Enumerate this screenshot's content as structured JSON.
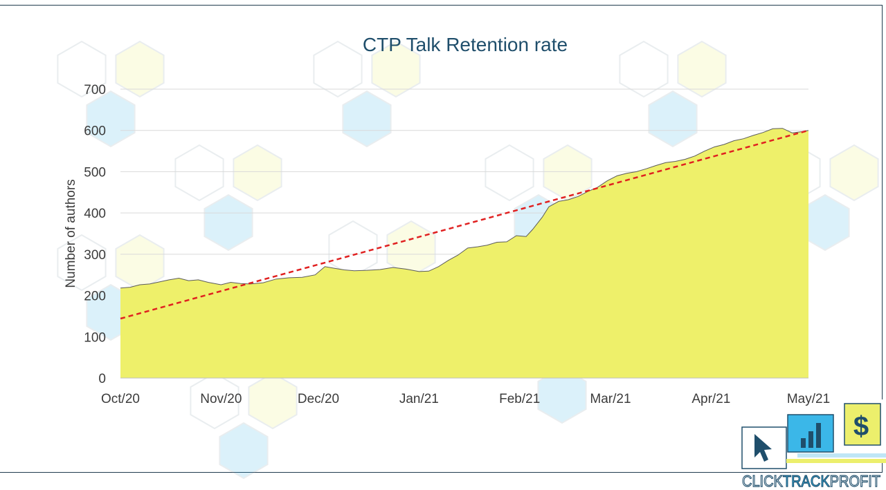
{
  "chart_data": {
    "type": "area",
    "title": "CTP Talk Retention rate",
    "xlabel": "",
    "ylabel": "Number of authors",
    "ylim": [
      0,
      700
    ],
    "yticks": [
      0,
      100,
      200,
      300,
      400,
      500,
      600,
      700
    ],
    "xlim": [
      "2020-10-01",
      "2021-05-01"
    ],
    "xticks": [
      {
        "date": "2020-10-01",
        "label": "Oct/20"
      },
      {
        "date": "2020-11-01",
        "label": "Nov/20"
      },
      {
        "date": "2020-12-01",
        "label": "Dec/20"
      },
      {
        "date": "2021-01-01",
        "label": "Jan/21"
      },
      {
        "date": "2021-02-01",
        "label": "Feb/21"
      },
      {
        "date": "2021-03-01",
        "label": "Mar/21"
      },
      {
        "date": "2021-04-01",
        "label": "Apr/21"
      },
      {
        "date": "2021-05-01",
        "label": "May/21"
      }
    ],
    "grid": true,
    "series": [
      {
        "name": "",
        "kind": "area",
        "color": "#eef06a",
        "points": [
          [
            "2020-10-01",
            218
          ],
          [
            "2020-10-04",
            220
          ],
          [
            "2020-10-07",
            226
          ],
          [
            "2020-10-10",
            228
          ],
          [
            "2020-10-13",
            233
          ],
          [
            "2020-10-16",
            238
          ],
          [
            "2020-10-19",
            242
          ],
          [
            "2020-10-22",
            236
          ],
          [
            "2020-10-25",
            238
          ],
          [
            "2020-10-28",
            232
          ],
          [
            "2020-11-01",
            226
          ],
          [
            "2020-11-04",
            232
          ],
          [
            "2020-11-07",
            229
          ],
          [
            "2020-11-10",
            228
          ],
          [
            "2020-11-14",
            231
          ],
          [
            "2020-11-18",
            240
          ],
          [
            "2020-11-22",
            243
          ],
          [
            "2020-11-26",
            244
          ],
          [
            "2020-11-30",
            250
          ],
          [
            "2020-12-03",
            270
          ],
          [
            "2020-12-06",
            266
          ],
          [
            "2020-12-09",
            262
          ],
          [
            "2020-12-12",
            260
          ],
          [
            "2020-12-16",
            261
          ],
          [
            "2020-12-20",
            263
          ],
          [
            "2020-12-24",
            268
          ],
          [
            "2020-12-28",
            264
          ],
          [
            "2021-01-01",
            258
          ],
          [
            "2021-01-04",
            259
          ],
          [
            "2021-01-07",
            270
          ],
          [
            "2021-01-10",
            285
          ],
          [
            "2021-01-13",
            298
          ],
          [
            "2021-01-16",
            315
          ],
          [
            "2021-01-19",
            318
          ],
          [
            "2021-01-22",
            322
          ],
          [
            "2021-01-25",
            329
          ],
          [
            "2021-01-28",
            330
          ],
          [
            "2021-01-31",
            345
          ],
          [
            "2021-02-03",
            343
          ],
          [
            "2021-02-05",
            360
          ],
          [
            "2021-02-08",
            390
          ],
          [
            "2021-02-10",
            415
          ],
          [
            "2021-02-13",
            428
          ],
          [
            "2021-02-16",
            432
          ],
          [
            "2021-02-19",
            440
          ],
          [
            "2021-02-22",
            452
          ],
          [
            "2021-02-25",
            462
          ],
          [
            "2021-02-28",
            478
          ],
          [
            "2021-03-03",
            490
          ],
          [
            "2021-03-06",
            496
          ],
          [
            "2021-03-09",
            500
          ],
          [
            "2021-03-12",
            507
          ],
          [
            "2021-03-15",
            515
          ],
          [
            "2021-03-18",
            522
          ],
          [
            "2021-03-21",
            525
          ],
          [
            "2021-03-24",
            530
          ],
          [
            "2021-03-27",
            538
          ],
          [
            "2021-03-30",
            550
          ],
          [
            "2021-04-02",
            560
          ],
          [
            "2021-04-05",
            566
          ],
          [
            "2021-04-08",
            575
          ],
          [
            "2021-04-11",
            580
          ],
          [
            "2021-04-14",
            588
          ],
          [
            "2021-04-17",
            595
          ],
          [
            "2021-04-20",
            604
          ],
          [
            "2021-04-23",
            605
          ],
          [
            "2021-04-26",
            594
          ],
          [
            "2021-04-29",
            597
          ],
          [
            "2021-05-01",
            600
          ]
        ]
      },
      {
        "name": "",
        "kind": "trendline",
        "style": "dashed",
        "color": "#e02020",
        "points": [
          [
            "2020-10-01",
            144
          ],
          [
            "2021-05-01",
            600
          ]
        ]
      }
    ]
  },
  "branding": {
    "logo_text_light": "CLICK",
    "logo_text_bold": "TRACK",
    "logo_text_end": "PROFIT",
    "logo_symbol": "$",
    "logo_icons": [
      "cursor-icon",
      "bar-chart-icon",
      "dollar-icon"
    ],
    "colors": {
      "blue": "#3bb7e8",
      "yellow": "#ecef6c",
      "navy": "#1f4e6b"
    }
  }
}
